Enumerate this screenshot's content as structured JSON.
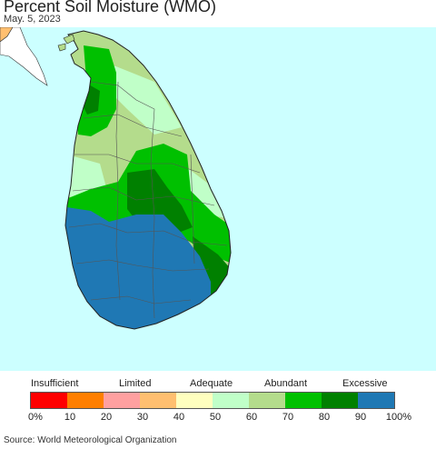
{
  "title": "Percent Soil Moisture (WMO)",
  "date": "May. 5, 2023",
  "source": "Source: World Meteorological Organization",
  "legend": {
    "categories": [
      "Insufficient",
      "Limited",
      "Adequate",
      "Abundant",
      "Excessive"
    ],
    "ticks": [
      "0%",
      "10",
      "20",
      "30",
      "40",
      "50",
      "60",
      "70",
      "80",
      "90",
      "100%"
    ],
    "colors": [
      "#ff0000",
      "#ff7f00",
      "#ffa0a0",
      "#ffbf70",
      "#ffffbf",
      "#c0ffc8",
      "#b4dc8c",
      "#00c000",
      "#008000",
      "#1f78b4"
    ]
  },
  "map": {
    "ocean_color": "#ccffff",
    "region": "Sri Lanka"
  }
}
